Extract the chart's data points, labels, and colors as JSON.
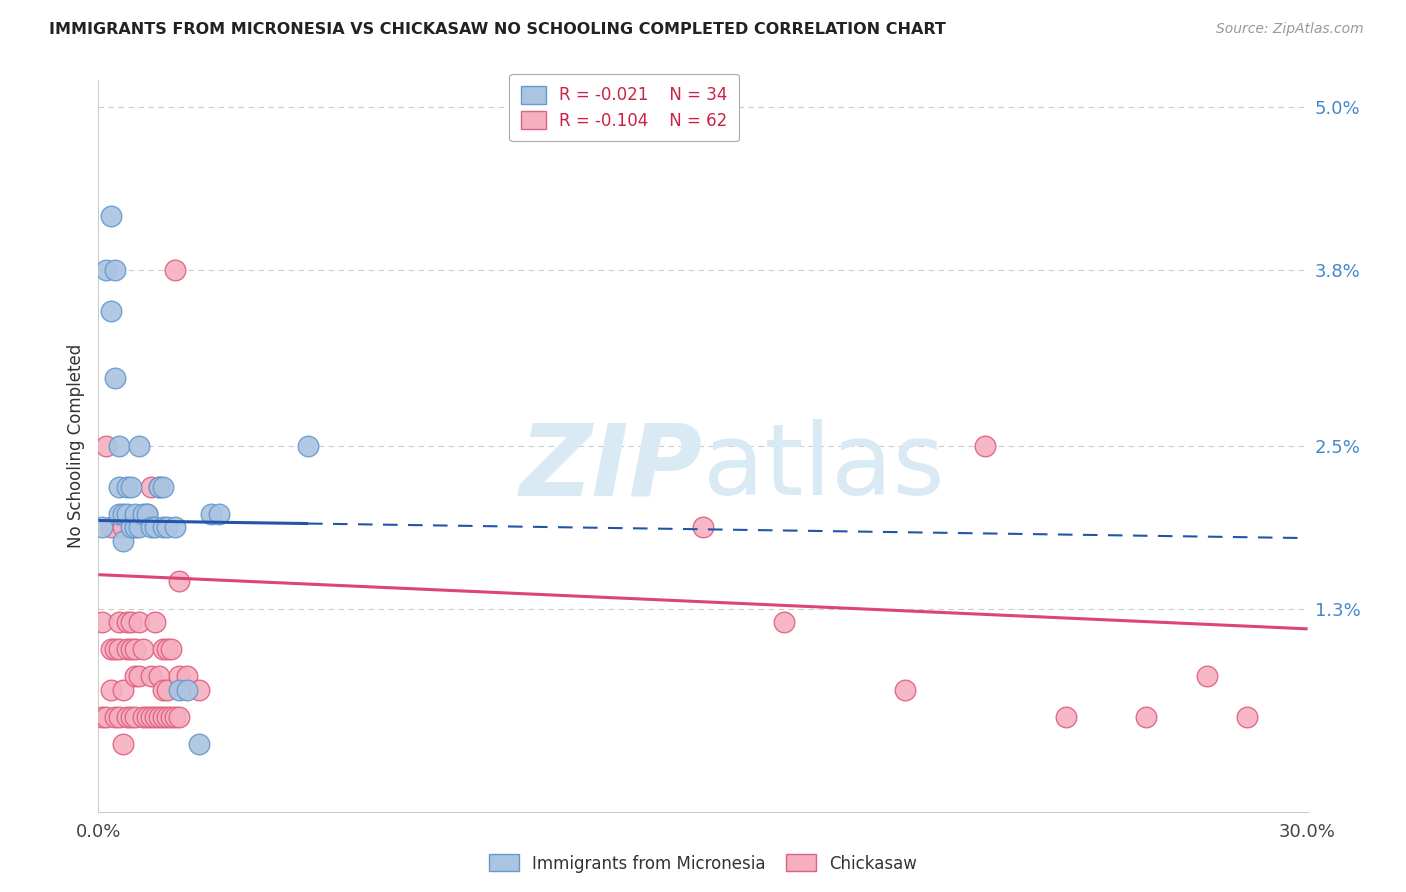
{
  "title": "IMMIGRANTS FROM MICRONESIA VS CHICKASAW NO SCHOOLING COMPLETED CORRELATION CHART",
  "source": "Source: ZipAtlas.com",
  "ylabel": "No Schooling Completed",
  "xlim": [
    0.0,
    0.3
  ],
  "ylim": [
    -0.002,
    0.052
  ],
  "blue_label": "Immigrants from Micronesia",
  "pink_label": "Chickasaw",
  "blue_R": "R = -0.021",
  "blue_N": "N = 34",
  "pink_R": "R = -0.104",
  "pink_N": "N = 62",
  "blue_color": "#aac4e2",
  "pink_color": "#f5afc0",
  "blue_edge": "#6699cc",
  "pink_edge": "#e06080",
  "blue_line_color": "#2255aa",
  "pink_line_color": "#dd4477",
  "watermark_color": "#daeaf5",
  "grid_color": "#cccccc",
  "ytick_color": "#4488cc",
  "ytick_vals": [
    0.013,
    0.025,
    0.038,
    0.05
  ],
  "ytick_labels": [
    "1.3%",
    "2.5%",
    "3.8%",
    "5.0%"
  ],
  "blue_line_y0": 0.0195,
  "blue_line_y1": 0.0182,
  "blue_solid_xend": 0.052,
  "pink_line_y0": 0.0155,
  "pink_line_y1": 0.0115,
  "blue_x": [
    0.001,
    0.002,
    0.003,
    0.003,
    0.004,
    0.004,
    0.005,
    0.005,
    0.005,
    0.006,
    0.006,
    0.007,
    0.007,
    0.008,
    0.008,
    0.009,
    0.009,
    0.01,
    0.01,
    0.011,
    0.012,
    0.013,
    0.014,
    0.015,
    0.016,
    0.016,
    0.017,
    0.019,
    0.02,
    0.022,
    0.025,
    0.028,
    0.03,
    0.052
  ],
  "blue_y": [
    0.019,
    0.038,
    0.035,
    0.042,
    0.03,
    0.038,
    0.02,
    0.022,
    0.025,
    0.018,
    0.02,
    0.02,
    0.022,
    0.019,
    0.022,
    0.019,
    0.02,
    0.019,
    0.025,
    0.02,
    0.02,
    0.019,
    0.019,
    0.022,
    0.019,
    0.022,
    0.019,
    0.019,
    0.007,
    0.007,
    0.003,
    0.02,
    0.02,
    0.025
  ],
  "pink_x": [
    0.001,
    0.001,
    0.002,
    0.002,
    0.003,
    0.003,
    0.003,
    0.004,
    0.004,
    0.005,
    0.005,
    0.005,
    0.006,
    0.006,
    0.006,
    0.007,
    0.007,
    0.007,
    0.008,
    0.008,
    0.008,
    0.009,
    0.009,
    0.009,
    0.009,
    0.01,
    0.01,
    0.011,
    0.011,
    0.012,
    0.012,
    0.013,
    0.013,
    0.013,
    0.014,
    0.014,
    0.015,
    0.015,
    0.015,
    0.016,
    0.016,
    0.016,
    0.017,
    0.017,
    0.017,
    0.018,
    0.018,
    0.019,
    0.019,
    0.02,
    0.02,
    0.02,
    0.022,
    0.025,
    0.15,
    0.17,
    0.2,
    0.22,
    0.24,
    0.26,
    0.275,
    0.285
  ],
  "pink_y": [
    0.005,
    0.012,
    0.005,
    0.025,
    0.007,
    0.01,
    0.019,
    0.005,
    0.01,
    0.005,
    0.01,
    0.012,
    0.003,
    0.007,
    0.019,
    0.005,
    0.01,
    0.012,
    0.005,
    0.01,
    0.012,
    0.005,
    0.008,
    0.01,
    0.019,
    0.008,
    0.012,
    0.005,
    0.01,
    0.005,
    0.02,
    0.005,
    0.008,
    0.022,
    0.005,
    0.012,
    0.005,
    0.008,
    0.022,
    0.005,
    0.007,
    0.01,
    0.005,
    0.007,
    0.01,
    0.005,
    0.01,
    0.005,
    0.038,
    0.005,
    0.008,
    0.015,
    0.008,
    0.007,
    0.019,
    0.012,
    0.007,
    0.025,
    0.005,
    0.005,
    0.008,
    0.005
  ]
}
